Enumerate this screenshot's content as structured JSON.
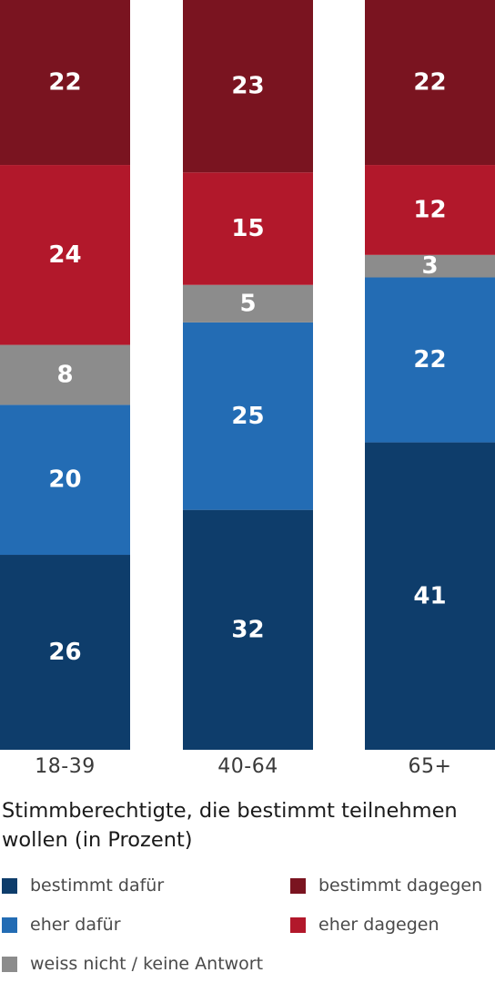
{
  "chart_data": {
    "type": "bar",
    "stacked": true,
    "categories": [
      "18-39",
      "40-64",
      "65+"
    ],
    "series": [
      {
        "name": "bestimmt dafür",
        "color": "#0e3d6b",
        "values": [
          26,
          32,
          41
        ]
      },
      {
        "name": "eher dafür",
        "color": "#236cb4",
        "values": [
          20,
          25,
          22
        ]
      },
      {
        "name": "weiss nicht / keine Antwort",
        "color": "#8c8c8c",
        "values": [
          8,
          5,
          3
        ]
      },
      {
        "name": "eher dagegen",
        "color": "#b2182b",
        "values": [
          24,
          15,
          12
        ]
      },
      {
        "name": "bestimmt dagegen",
        "color": "#7a1420",
        "values": [
          22,
          23,
          22
        ]
      }
    ],
    "data_labels": true
  },
  "caption": "Stimmberechtigte, die bestimmt teilnehmen wollen (in Prozent)"
}
